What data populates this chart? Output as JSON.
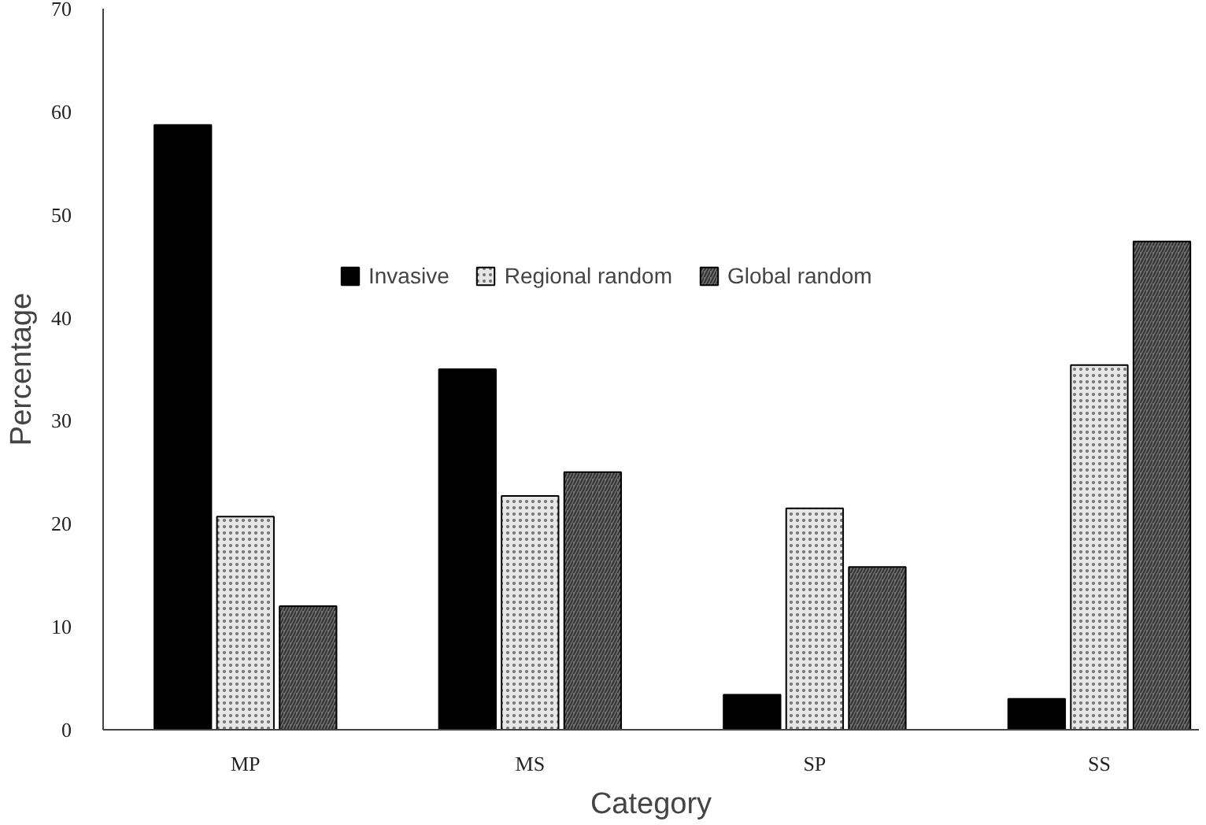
{
  "chart_data": {
    "type": "bar",
    "xlabel": "Category",
    "ylabel": "Percentage",
    "categories": [
      "MP",
      "MS",
      "SP",
      "SS"
    ],
    "series": [
      {
        "name": "Invasive",
        "color": "#000000",
        "values": [
          58.7,
          35.0,
          3.4,
          3.0
        ]
      },
      {
        "name": "Regional random",
        "color": "#e6e6e6",
        "values": [
          20.7,
          22.7,
          21.5,
          35.4
        ]
      },
      {
        "name": "Global random",
        "color": "#707070",
        "values": [
          12.0,
          25.0,
          15.8,
          47.4
        ]
      }
    ],
    "ylim": [
      0,
      70
    ],
    "yticks": [
      0,
      10,
      20,
      30,
      40,
      50,
      60,
      70
    ],
    "grid": false,
    "legend": "top"
  }
}
